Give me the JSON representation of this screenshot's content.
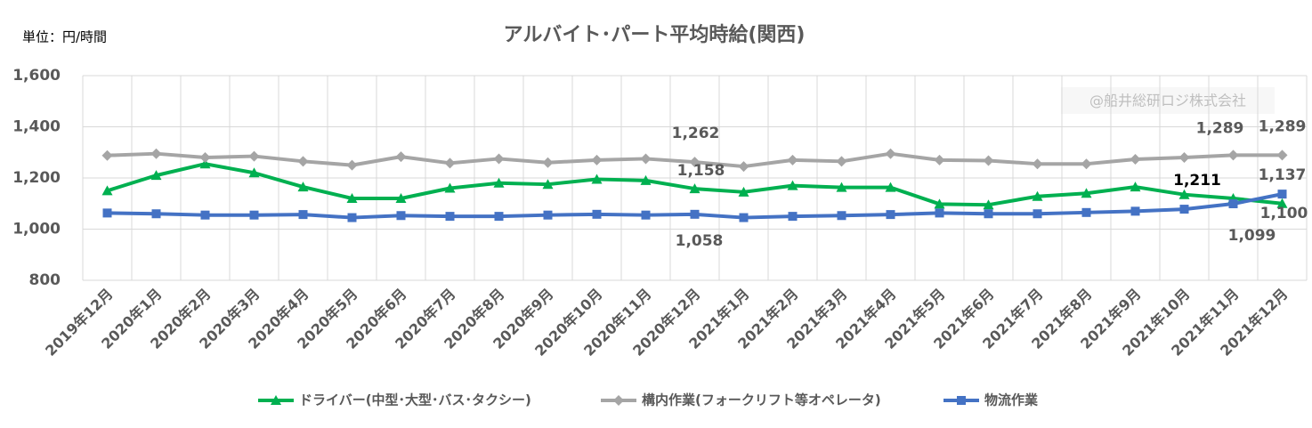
{
  "chart_data": {
    "type": "line",
    "title": "アルバイト･パート平均時給(関西)",
    "unit_label": "単位：円/時間",
    "credit": "@船井総研ロジ株式会社",
    "categories": [
      "2019年12月",
      "2020年1月",
      "2020年2月",
      "2020年3月",
      "2020年4月",
      "2020年5月",
      "2020年6月",
      "2020年7月",
      "2020年8月",
      "2020年9月",
      "2020年10月",
      "2020年11月",
      "2020年12月",
      "2021年1月",
      "2021年2月",
      "2021年3月",
      "2021年4月",
      "2021年5月",
      "2021年6月",
      "2021年7月",
      "2021年8月",
      "2021年9月",
      "2021年10月",
      "2021年11月",
      "2021年12月"
    ],
    "series": [
      {
        "name": "ドライバー(中型･大型･バス･タクシー)",
        "color": "#00b050",
        "marker": "triangle",
        "values": [
          1150,
          1210,
          1255,
          1220,
          1165,
          1120,
          1120,
          1160,
          1180,
          1175,
          1195,
          1190,
          1158,
          1145,
          1170,
          1163,
          1163,
          1098,
          1095,
          1128,
          1140,
          1165,
          1135,
          1120,
          1100
        ],
        "value_labels": [
          null,
          null,
          null,
          null,
          null,
          null,
          null,
          null,
          null,
          null,
          null,
          null,
          "1,158",
          null,
          null,
          null,
          null,
          null,
          null,
          null,
          null,
          null,
          null,
          null,
          "1,100"
        ]
      },
      {
        "name": "構内作業(フォークリフト等オペレータ)",
        "color": "#a5a5a5",
        "marker": "diamond",
        "values": [
          1288,
          1295,
          1280,
          1285,
          1265,
          1250,
          1283,
          1258,
          1275,
          1260,
          1270,
          1275,
          1262,
          1245,
          1270,
          1265,
          1295,
          1270,
          1268,
          1255,
          1255,
          1273,
          1280,
          1289,
          1289
        ],
        "value_labels": [
          null,
          null,
          null,
          null,
          null,
          null,
          null,
          null,
          null,
          null,
          null,
          null,
          "1,262",
          null,
          null,
          null,
          null,
          null,
          null,
          null,
          null,
          null,
          null,
          "1,289",
          "1,289"
        ]
      },
      {
        "name": "物流作業",
        "color": "#4472c4",
        "marker": "square",
        "values": [
          1063,
          1060,
          1055,
          1055,
          1057,
          1045,
          1053,
          1050,
          1050,
          1055,
          1058,
          1055,
          1058,
          1045,
          1050,
          1053,
          1057,
          1063,
          1060,
          1060,
          1065,
          1070,
          1078,
          1099,
          1137
        ],
        "value_labels": [
          null,
          null,
          null,
          null,
          null,
          null,
          null,
          null,
          null,
          null,
          null,
          null,
          "1,058",
          null,
          null,
          null,
          null,
          null,
          null,
          null,
          null,
          null,
          null,
          "1,099",
          "1,137"
        ]
      }
    ],
    "annotations": [
      "1,211"
    ],
    "ylim": [
      800,
      1600
    ],
    "yticks": [
      800,
      {
        "value": 1000,
        "label": "1,000"
      },
      {
        "value": 1200,
        "label": "1,200"
      },
      {
        "value": 1400,
        "label": "1,400"
      },
      {
        "value": 1600,
        "label": "1,600"
      }
    ],
    "grid": true
  }
}
